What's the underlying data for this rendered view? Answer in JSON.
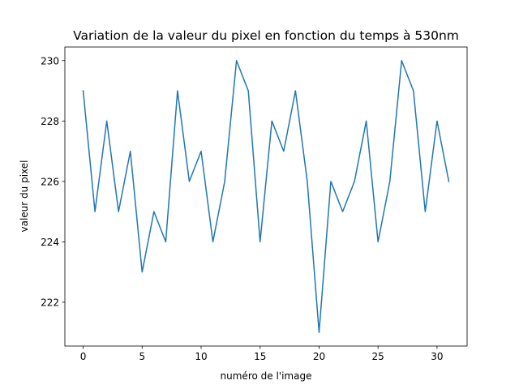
{
  "chart_data": {
    "type": "line",
    "title": "Variation de la valeur du pixel en fonction du temps à 530nm",
    "xlabel": "numéro de l'image",
    "ylabel": "valeur du pixel",
    "x": [
      0,
      1,
      2,
      3,
      4,
      5,
      6,
      7,
      8,
      9,
      10,
      11,
      12,
      13,
      14,
      15,
      16,
      17,
      18,
      19,
      20,
      21,
      22,
      23,
      24,
      25,
      26,
      27,
      28,
      29,
      30,
      31
    ],
    "series": [
      {
        "values": [
          229,
          225,
          228,
          225,
          227,
          223,
          225,
          224,
          229,
          226,
          227,
          224,
          226,
          230,
          229,
          224,
          228,
          227,
          229,
          226,
          221,
          226,
          225,
          226,
          228,
          224,
          226,
          230,
          229,
          225,
          228,
          226
        ],
        "color": "#1f77b4"
      }
    ],
    "xlim": [
      -1.55,
      32.55
    ],
    "ylim": [
      220.55,
      230.45
    ],
    "xticks": [
      0,
      5,
      10,
      15,
      20,
      25,
      30
    ],
    "yticks": [
      222,
      224,
      226,
      228,
      230
    ],
    "grid": false,
    "legend": false
  }
}
